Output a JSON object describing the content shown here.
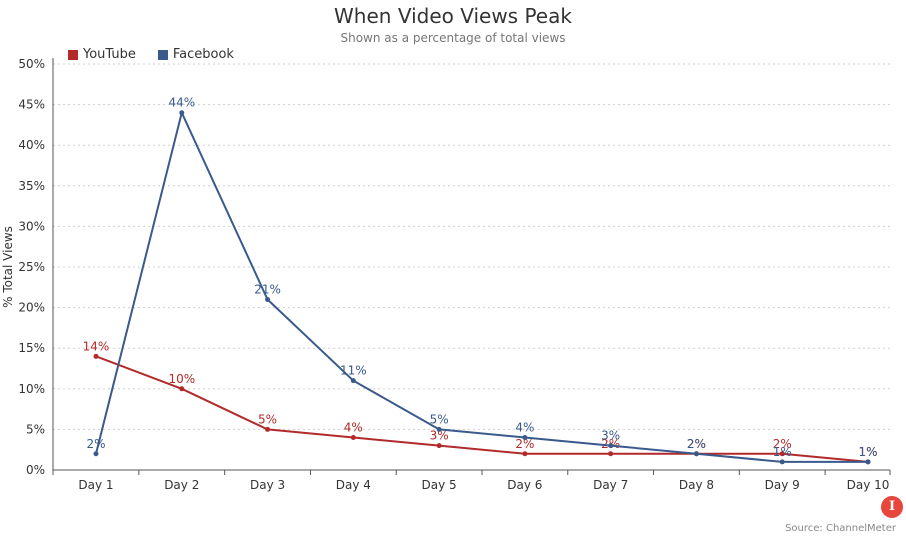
{
  "chart_data": {
    "type": "line",
    "title": "When Video Views Peak",
    "subtitle": "Shown as a percentage of total views",
    "xlabel": "",
    "ylabel": "% Total Views",
    "categories": [
      "Day 1",
      "Day 2",
      "Day 3",
      "Day 4",
      "Day 5",
      "Day 6",
      "Day 7",
      "Day 8",
      "Day 9",
      "Day 10"
    ],
    "ylim": [
      0,
      50
    ],
    "yticks": [
      "0%",
      "5%",
      "10%",
      "15%",
      "20%",
      "25%",
      "30%",
      "35%",
      "40%",
      "45%",
      "50%"
    ],
    "grid": true,
    "legend_position": "top-left",
    "series": [
      {
        "name": "YouTube",
        "color": "#b22a2a",
        "values": [
          14,
          10,
          5,
          4,
          3,
          2,
          2,
          2,
          2,
          1
        ],
        "labels": [
          "14%",
          "10%",
          "5%",
          "4%",
          "3%",
          "2%",
          "2%",
          "2%",
          "2%",
          "1%"
        ]
      },
      {
        "name": "Facebook",
        "color": "#3a5a8c",
        "values": [
          2,
          44,
          21,
          11,
          5,
          4,
          3,
          2,
          1,
          1
        ],
        "labels": [
          "2%",
          "44%",
          "21%",
          "11%",
          "5%",
          "4%",
          "3%",
          "2%",
          "1%",
          "1%"
        ]
      }
    ],
    "source": "Source: ChannelMeter"
  },
  "logo_glyph": "I"
}
